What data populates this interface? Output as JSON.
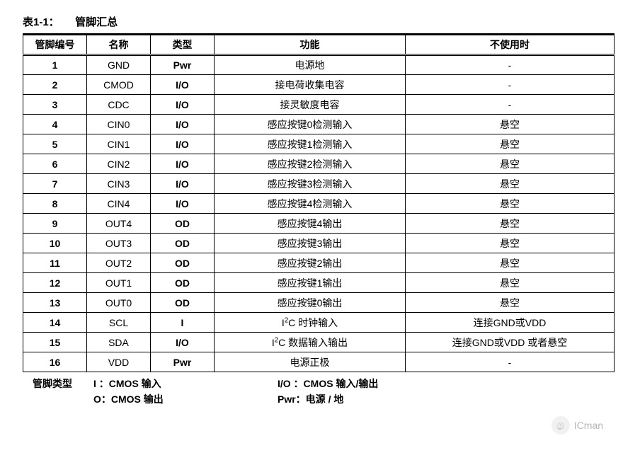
{
  "caption": "表1-1：　　管脚汇总",
  "columns": [
    "管脚编号",
    "名称",
    "类型",
    "功能",
    "不使用时"
  ],
  "rows": [
    {
      "pin": "1",
      "name": "GND",
      "type": "Pwr",
      "func": "电源地",
      "unused": "-"
    },
    {
      "pin": "2",
      "name": "CMOD",
      "type": "I/O",
      "func": "接电荷收集电容",
      "unused": "-"
    },
    {
      "pin": "3",
      "name": "CDC",
      "type": "I/O",
      "func": "接灵敏度电容",
      "unused": "-"
    },
    {
      "pin": "4",
      "name": "CIN0",
      "type": "I/O",
      "func": "感应按键0检测输入",
      "unused": "悬空"
    },
    {
      "pin": "5",
      "name": "CIN1",
      "type": "I/O",
      "func": "感应按键1检测输入",
      "unused": "悬空"
    },
    {
      "pin": "6",
      "name": "CIN2",
      "type": "I/O",
      "func": "感应按键2检测输入",
      "unused": "悬空"
    },
    {
      "pin": "7",
      "name": "CIN3",
      "type": "I/O",
      "func": "感应按键3检测输入",
      "unused": "悬空"
    },
    {
      "pin": "8",
      "name": "CIN4",
      "type": "I/O",
      "func": "感应按键4检测输入",
      "unused": "悬空"
    },
    {
      "pin": "9",
      "name": "OUT4",
      "type": "OD",
      "func": "感应按键4输出",
      "unused": "悬空"
    },
    {
      "pin": "10",
      "name": "OUT3",
      "type": "OD",
      "func": "感应按键3输出",
      "unused": "悬空"
    },
    {
      "pin": "11",
      "name": "OUT2",
      "type": "OD",
      "func": "感应按键2输出",
      "unused": "悬空"
    },
    {
      "pin": "12",
      "name": "OUT1",
      "type": "OD",
      "func": "感应按键1输出",
      "unused": "悬空"
    },
    {
      "pin": "13",
      "name": "OUT0",
      "type": "OD",
      "func": "感应按键0输出",
      "unused": "悬空"
    },
    {
      "pin": "14",
      "name": "SCL",
      "type": "I",
      "func_html": "I<sup>2</sup>C 时钟输入",
      "unused": "连接GND或VDD"
    },
    {
      "pin": "15",
      "name": "SDA",
      "type": "I/O",
      "func_html": "I<sup>2</sup>C 数据输入输出",
      "unused": "连接GND或VDD  或者悬空"
    },
    {
      "pin": "16",
      "name": "VDD",
      "type": "Pwr",
      "func": "电源正极",
      "unused": "-"
    }
  ],
  "legend": {
    "label": "管脚类型",
    "items": [
      {
        "c1": "I ：CMOS 输入",
        "c2": "I/O ：CMOS 输入/输出"
      },
      {
        "c1": "O：CMOS 输出",
        "c2": "Pwr：电源 / 地"
      }
    ]
  },
  "watermark": {
    "icon": "�ږ",
    "text": "ICman"
  }
}
